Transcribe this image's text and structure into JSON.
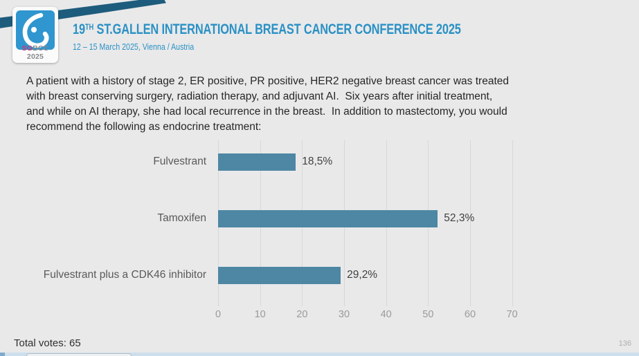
{
  "header": {
    "logo": {
      "icon": "sgbcc-droplet-icon",
      "label_highlight": "SG",
      "label_rest": "BCC 2025"
    },
    "title_number": "19",
    "title_superscript": "TH",
    "title_rest": " ST.GALLEN INTERNATIONAL BREAST CANCER CONFERENCE 2025",
    "subtitle": "12 – 15 March 2025, Vienna / Austria"
  },
  "question": {
    "lines": [
      "A patient with a history of stage 2, ER positive, PR positive, HER2 negative breast cancer was treated",
      "with breast conserving surgery, radiation therapy, and adjuvant AI.  Six years after initial treatment,",
      "and while on AI therapy, she had local recurrence in the breast.  In addition to mastectomy, you would",
      "recommend the following as endocrine treatment:"
    ]
  },
  "chart_data": {
    "type": "bar",
    "orientation": "horizontal",
    "title": "",
    "xlabel": "",
    "ylabel": "",
    "categories": [
      "Fulvestrant",
      "Tamoxifen",
      "Fulvestrant plus a CDK46 inhibitor"
    ],
    "values": [
      18.5,
      52.3,
      29.2
    ],
    "value_labels": [
      "18,5%",
      "52,3%",
      "29,2%"
    ],
    "xticks": [
      0,
      10,
      20,
      30,
      40,
      50,
      60,
      70
    ],
    "xlim": [
      0,
      75
    ],
    "bar_color": "#4d87a3",
    "grid": true,
    "legend": false
  },
  "footer": {
    "total_votes": "Total votes: 65",
    "page_number": "136"
  },
  "colors": {
    "accent_blue": "#2b91c4",
    "ribbon_navy": "#1d5c7c",
    "logo_blue": "#2f96cf",
    "logo_magenta": "#c23b7c",
    "bar": "#4d87a3",
    "background": "#e9e9ea"
  }
}
